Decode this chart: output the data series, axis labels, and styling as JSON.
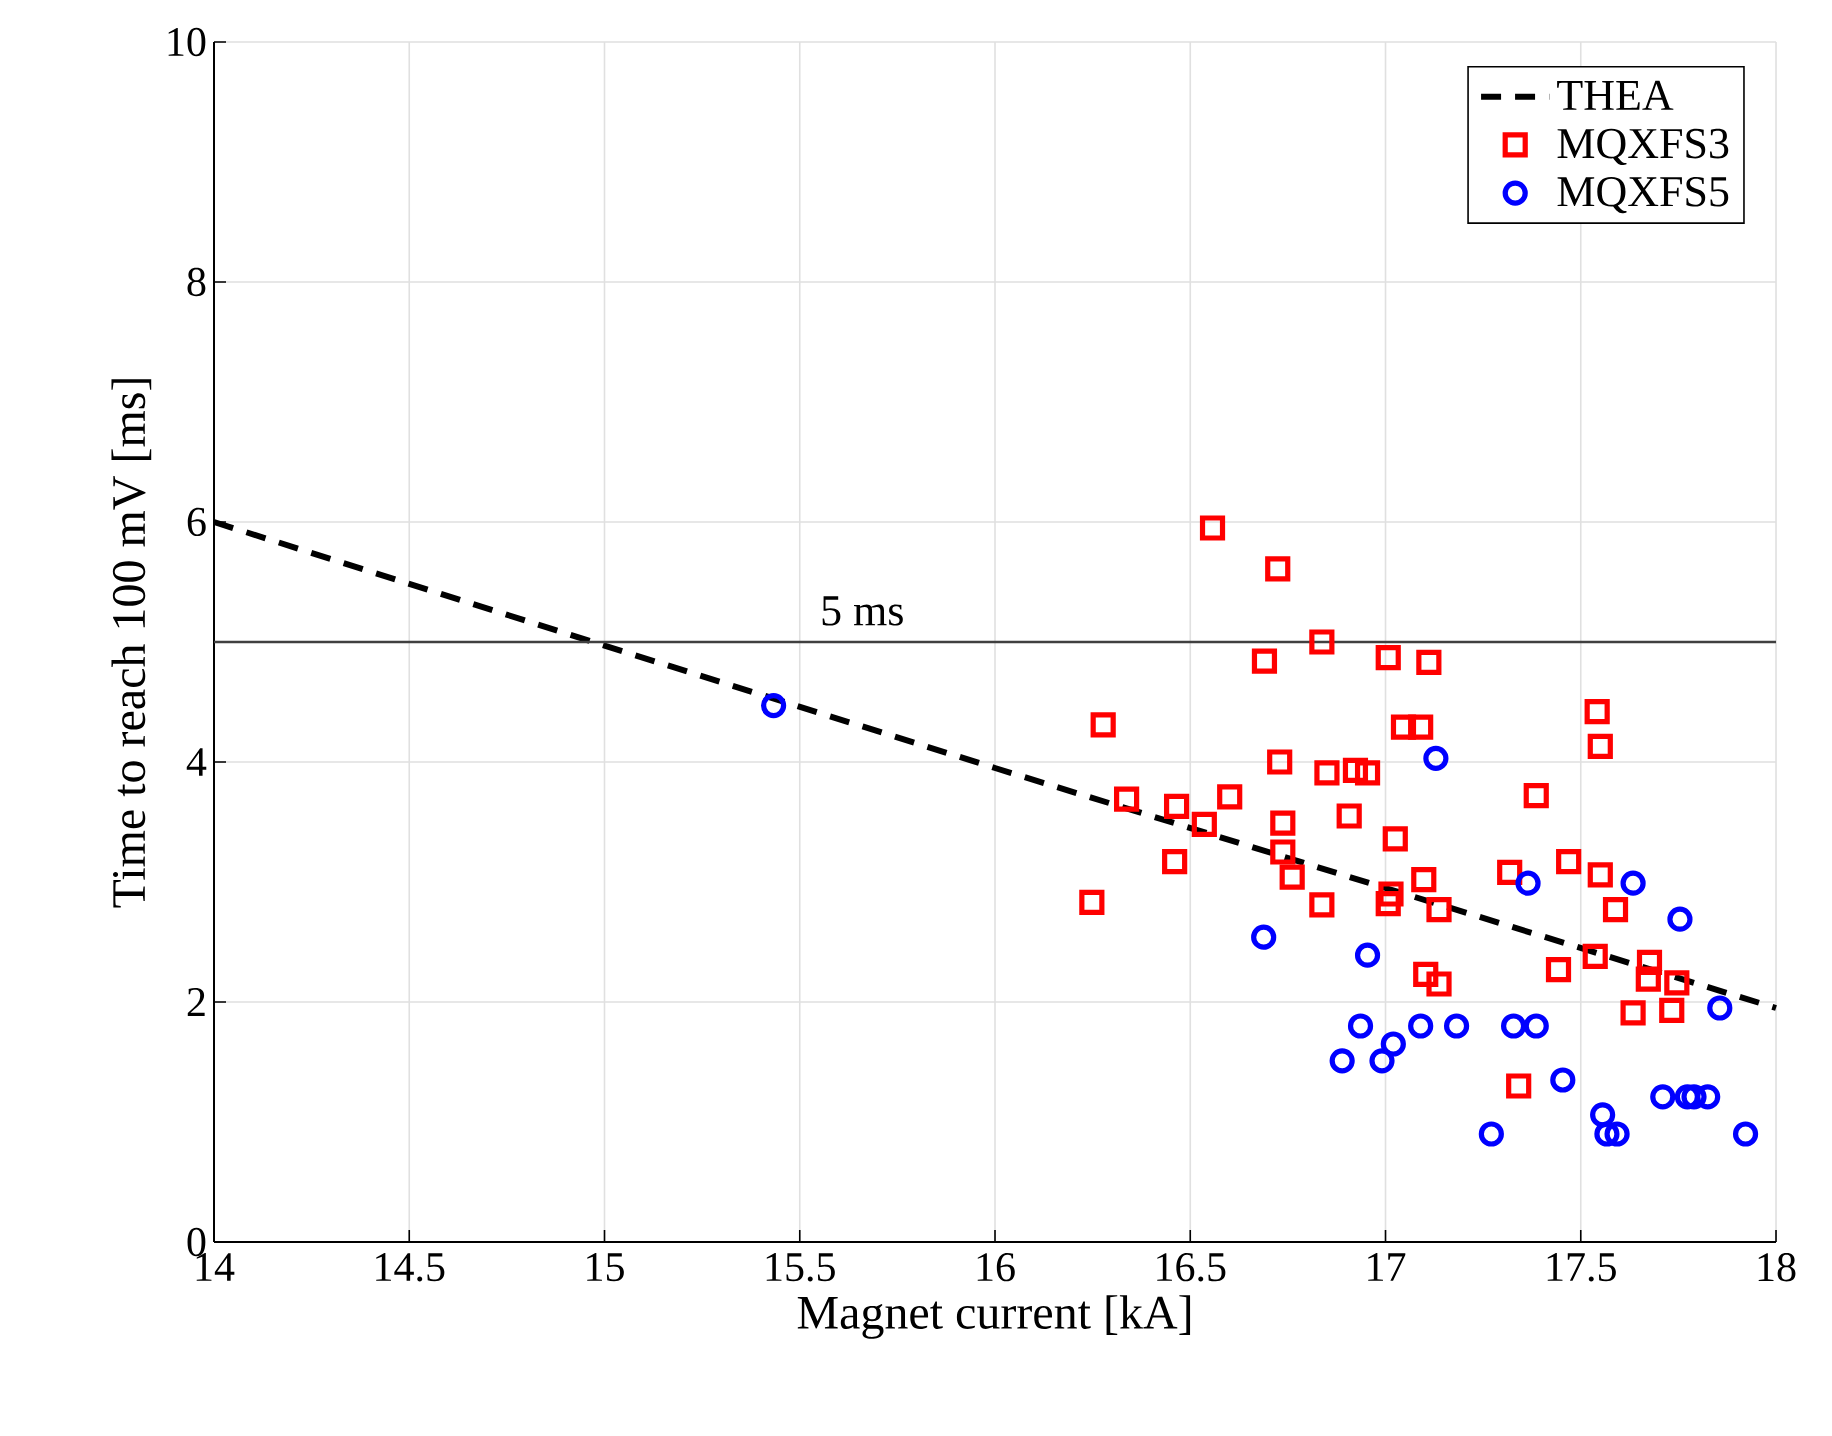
{
  "chart_data": {
    "type": "scatter",
    "xlabel": "Magnet current [kA]",
    "ylabel": "Time to reach 100 mV [ms]",
    "xlim": [
      14,
      18
    ],
    "ylim": [
      0,
      10
    ],
    "xticks": [
      14,
      14.5,
      15,
      15.5,
      16,
      16.5,
      17,
      17.5,
      18
    ],
    "yticks": [
      0,
      2,
      4,
      6,
      8,
      10
    ],
    "grid": true,
    "legend": "top right",
    "ref_lines": [
      {
        "axis": "y",
        "value": 5,
        "label": "5 ms",
        "color": "#404040",
        "line_style": "solid"
      }
    ],
    "series": [
      {
        "name": "THEA",
        "type": "line",
        "color": "#000000",
        "line_style": "dashed",
        "marker": "none",
        "x": [
          14,
          15,
          16,
          17,
          18
        ],
        "values": [
          6.0,
          4.97,
          3.95,
          2.95,
          1.95
        ]
      },
      {
        "name": "MQXFS3",
        "color": "#ff0000",
        "marker": "square",
        "x": [
          16.557,
          16.724,
          16.837,
          16.69,
          17.007,
          17.111,
          16.277,
          17.046,
          17.09,
          17.542,
          17.55,
          16.729,
          16.85,
          16.923,
          16.954,
          16.337,
          16.465,
          16.536,
          16.601,
          17.386,
          16.737,
          16.907,
          17.025,
          16.737,
          16.46,
          16.761,
          17.098,
          17.318,
          17.469,
          17.55,
          17.014,
          17.007,
          16.837,
          16.248,
          17.137,
          17.589,
          17.443,
          17.537,
          17.676,
          17.673,
          17.746,
          17.634,
          17.733,
          17.103,
          17.137,
          17.341
        ],
        "values": [
          5.95,
          5.61,
          5.0,
          4.84,
          4.87,
          4.83,
          4.31,
          4.29,
          4.29,
          4.42,
          4.13,
          4.0,
          3.91,
          3.93,
          3.91,
          3.69,
          3.63,
          3.48,
          3.71,
          3.72,
          3.49,
          3.55,
          3.36,
          3.25,
          3.17,
          3.04,
          3.02,
          3.08,
          3.17,
          3.06,
          2.9,
          2.82,
          2.81,
          2.83,
          2.77,
          2.77,
          2.27,
          2.38,
          2.33,
          2.19,
          2.16,
          1.91,
          1.93,
          2.23,
          2.15,
          1.3
        ]
      },
      {
        "name": "MQXFS5",
        "color": "#0000ff",
        "marker": "circle",
        "x": [
          15.433,
          17.129,
          17.365,
          17.634,
          17.754,
          16.688,
          16.954,
          17.856,
          16.936,
          17.02,
          17.09,
          17.182,
          16.889,
          16.991,
          17.328,
          17.386,
          17.454,
          17.271,
          17.556,
          17.567,
          17.593,
          17.71,
          17.773,
          17.79,
          17.825,
          17.922
        ],
        "values": [
          4.47,
          4.03,
          2.99,
          2.99,
          2.69,
          2.54,
          2.39,
          1.95,
          1.8,
          1.65,
          1.8,
          1.8,
          1.51,
          1.51,
          1.8,
          1.8,
          1.35,
          0.9,
          1.06,
          0.9,
          0.9,
          1.21,
          1.21,
          1.21,
          1.21,
          0.9
        ]
      }
    ]
  }
}
